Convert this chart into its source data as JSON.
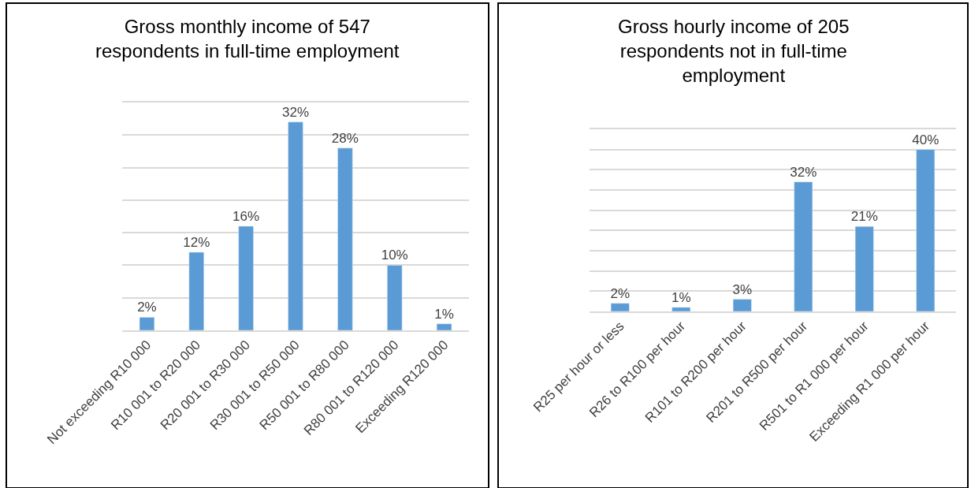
{
  "chart_data": [
    {
      "type": "bar",
      "title": "Gross monthly income of 547\nrespondents in full-time employment",
      "categories": [
        "Not exceeding R10 000",
        "R10 001 to R20 000",
        "R20 001 to R30 000",
        "R30 001 to R50 000",
        "R50 001 to R80 000",
        "R80 001 to R120 000",
        "Exceeding R120 000"
      ],
      "values": [
        2,
        12,
        16,
        32,
        28,
        10,
        1
      ],
      "value_labels": [
        "2%",
        "12%",
        "16%",
        "32%",
        "28%",
        "10%",
        "1%"
      ],
      "color": "#5b9bd5",
      "ylim": [
        0,
        35
      ],
      "yticks": [
        {
          "value": 0,
          "label": null
        },
        {
          "value": 5,
          "label": null
        },
        {
          "value": 10,
          "label": null
        },
        {
          "value": 15,
          "label": null
        },
        {
          "value": 20,
          "label": null
        },
        {
          "value": 25,
          "label": null
        },
        {
          "value": 30,
          "label": null
        },
        {
          "value": 35,
          "label": null
        }
      ],
      "grid": "y",
      "tick_labels": "x"
    },
    {
      "type": "bar",
      "title": "Gross hourly income of 205\nrespondents not in full-time\nemployment",
      "categories": [
        "R25 per hour or less",
        "R26 to R100 per hour",
        "R101 to R200 per hour",
        "R201 to R500 per hour",
        "R501 to R1 000 per hour",
        "Exceeding R1 000 per hour"
      ],
      "values": [
        2,
        1,
        3,
        32,
        21,
        40
      ],
      "value_labels": [
        "2%",
        "1%",
        "3%",
        "32%",
        "21%",
        "40%"
      ],
      "color": "#5b9bd5",
      "ylim": [
        0,
        45
      ],
      "yticks": [
        {
          "value": 0,
          "label": null
        },
        {
          "value": 5,
          "label": null
        },
        {
          "value": 10,
          "label": null
        },
        {
          "value": 15,
          "label": null
        },
        {
          "value": 20,
          "label": null
        },
        {
          "value": 25,
          "label": null
        },
        {
          "value": 30,
          "label": null
        },
        {
          "value": 35,
          "label": null
        },
        {
          "value": 40,
          "label": null
        },
        {
          "value": 45,
          "label": null
        }
      ],
      "grid": "y",
      "tick_labels": "x"
    }
  ]
}
